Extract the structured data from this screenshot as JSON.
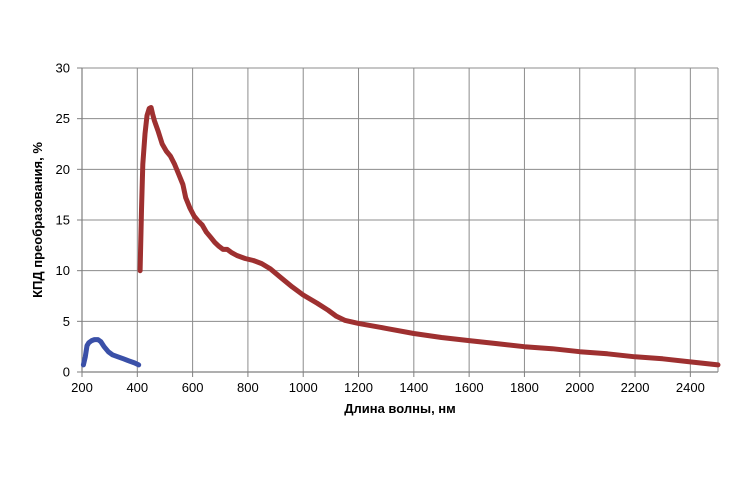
{
  "chart_data": {
    "type": "line",
    "title": "",
    "xlabel": "Длина волны, нм",
    "ylabel": "КПД преобразования, %",
    "xlim": [
      200,
      2500
    ],
    "ylim": [
      0,
      30
    ],
    "x_ticks": [
      200,
      400,
      600,
      800,
      1000,
      1200,
      1400,
      1600,
      1800,
      2000,
      2200,
      2400
    ],
    "y_ticks": [
      0,
      5,
      10,
      15,
      20,
      25,
      30
    ],
    "x_tick_labels": [
      "200",
      "400",
      "600",
      "800",
      "1000",
      "1200",
      "1400",
      "1600",
      "1800",
      "2000",
      "2200",
      "2400"
    ],
    "y_tick_labels": [
      "0",
      "5",
      "10",
      "15",
      "20",
      "25",
      "30"
    ],
    "grid": true,
    "legend": "none",
    "series": [
      {
        "color": "#3a50a8",
        "points": [
          [
            205,
            0.7
          ],
          [
            212,
            1.5
          ],
          [
            218,
            2.6
          ],
          [
            225,
            2.9
          ],
          [
            235,
            3.1
          ],
          [
            245,
            3.2
          ],
          [
            258,
            3.2
          ],
          [
            268,
            3.0
          ],
          [
            280,
            2.5
          ],
          [
            295,
            2.0
          ],
          [
            310,
            1.7
          ],
          [
            330,
            1.5
          ],
          [
            350,
            1.3
          ],
          [
            370,
            1.1
          ],
          [
            390,
            0.9
          ],
          [
            405,
            0.7
          ]
        ]
      },
      {
        "color": "#9e3030",
        "points": [
          [
            410,
            10.0
          ],
          [
            415,
            16.0
          ],
          [
            420,
            20.5
          ],
          [
            428,
            23.5
          ],
          [
            435,
            25.3
          ],
          [
            443,
            26.0
          ],
          [
            450,
            26.1
          ],
          [
            455,
            25.5
          ],
          [
            462,
            24.8
          ],
          [
            475,
            23.8
          ],
          [
            490,
            22.5
          ],
          [
            505,
            21.8
          ],
          [
            520,
            21.3
          ],
          [
            535,
            20.5
          ],
          [
            550,
            19.5
          ],
          [
            565,
            18.5
          ],
          [
            575,
            17.2
          ],
          [
            590,
            16.2
          ],
          [
            605,
            15.4
          ],
          [
            620,
            14.9
          ],
          [
            635,
            14.5
          ],
          [
            650,
            13.8
          ],
          [
            665,
            13.3
          ],
          [
            680,
            12.8
          ],
          [
            695,
            12.4
          ],
          [
            710,
            12.1
          ],
          [
            725,
            12.1
          ],
          [
            740,
            11.8
          ],
          [
            760,
            11.5
          ],
          [
            790,
            11.2
          ],
          [
            820,
            11.0
          ],
          [
            850,
            10.7
          ],
          [
            880,
            10.2
          ],
          [
            920,
            9.3
          ],
          [
            960,
            8.4
          ],
          [
            1000,
            7.6
          ],
          [
            1050,
            6.8
          ],
          [
            1090,
            6.1
          ],
          [
            1120,
            5.5
          ],
          [
            1150,
            5.1
          ],
          [
            1200,
            4.8
          ],
          [
            1300,
            4.3
          ],
          [
            1400,
            3.8
          ],
          [
            1500,
            3.4
          ],
          [
            1600,
            3.1
          ],
          [
            1700,
            2.8
          ],
          [
            1800,
            2.5
          ],
          [
            1900,
            2.3
          ],
          [
            2000,
            2.0
          ],
          [
            2100,
            1.8
          ],
          [
            2200,
            1.5
          ],
          [
            2300,
            1.3
          ],
          [
            2400,
            1.0
          ],
          [
            2500,
            0.7
          ]
        ]
      }
    ]
  }
}
